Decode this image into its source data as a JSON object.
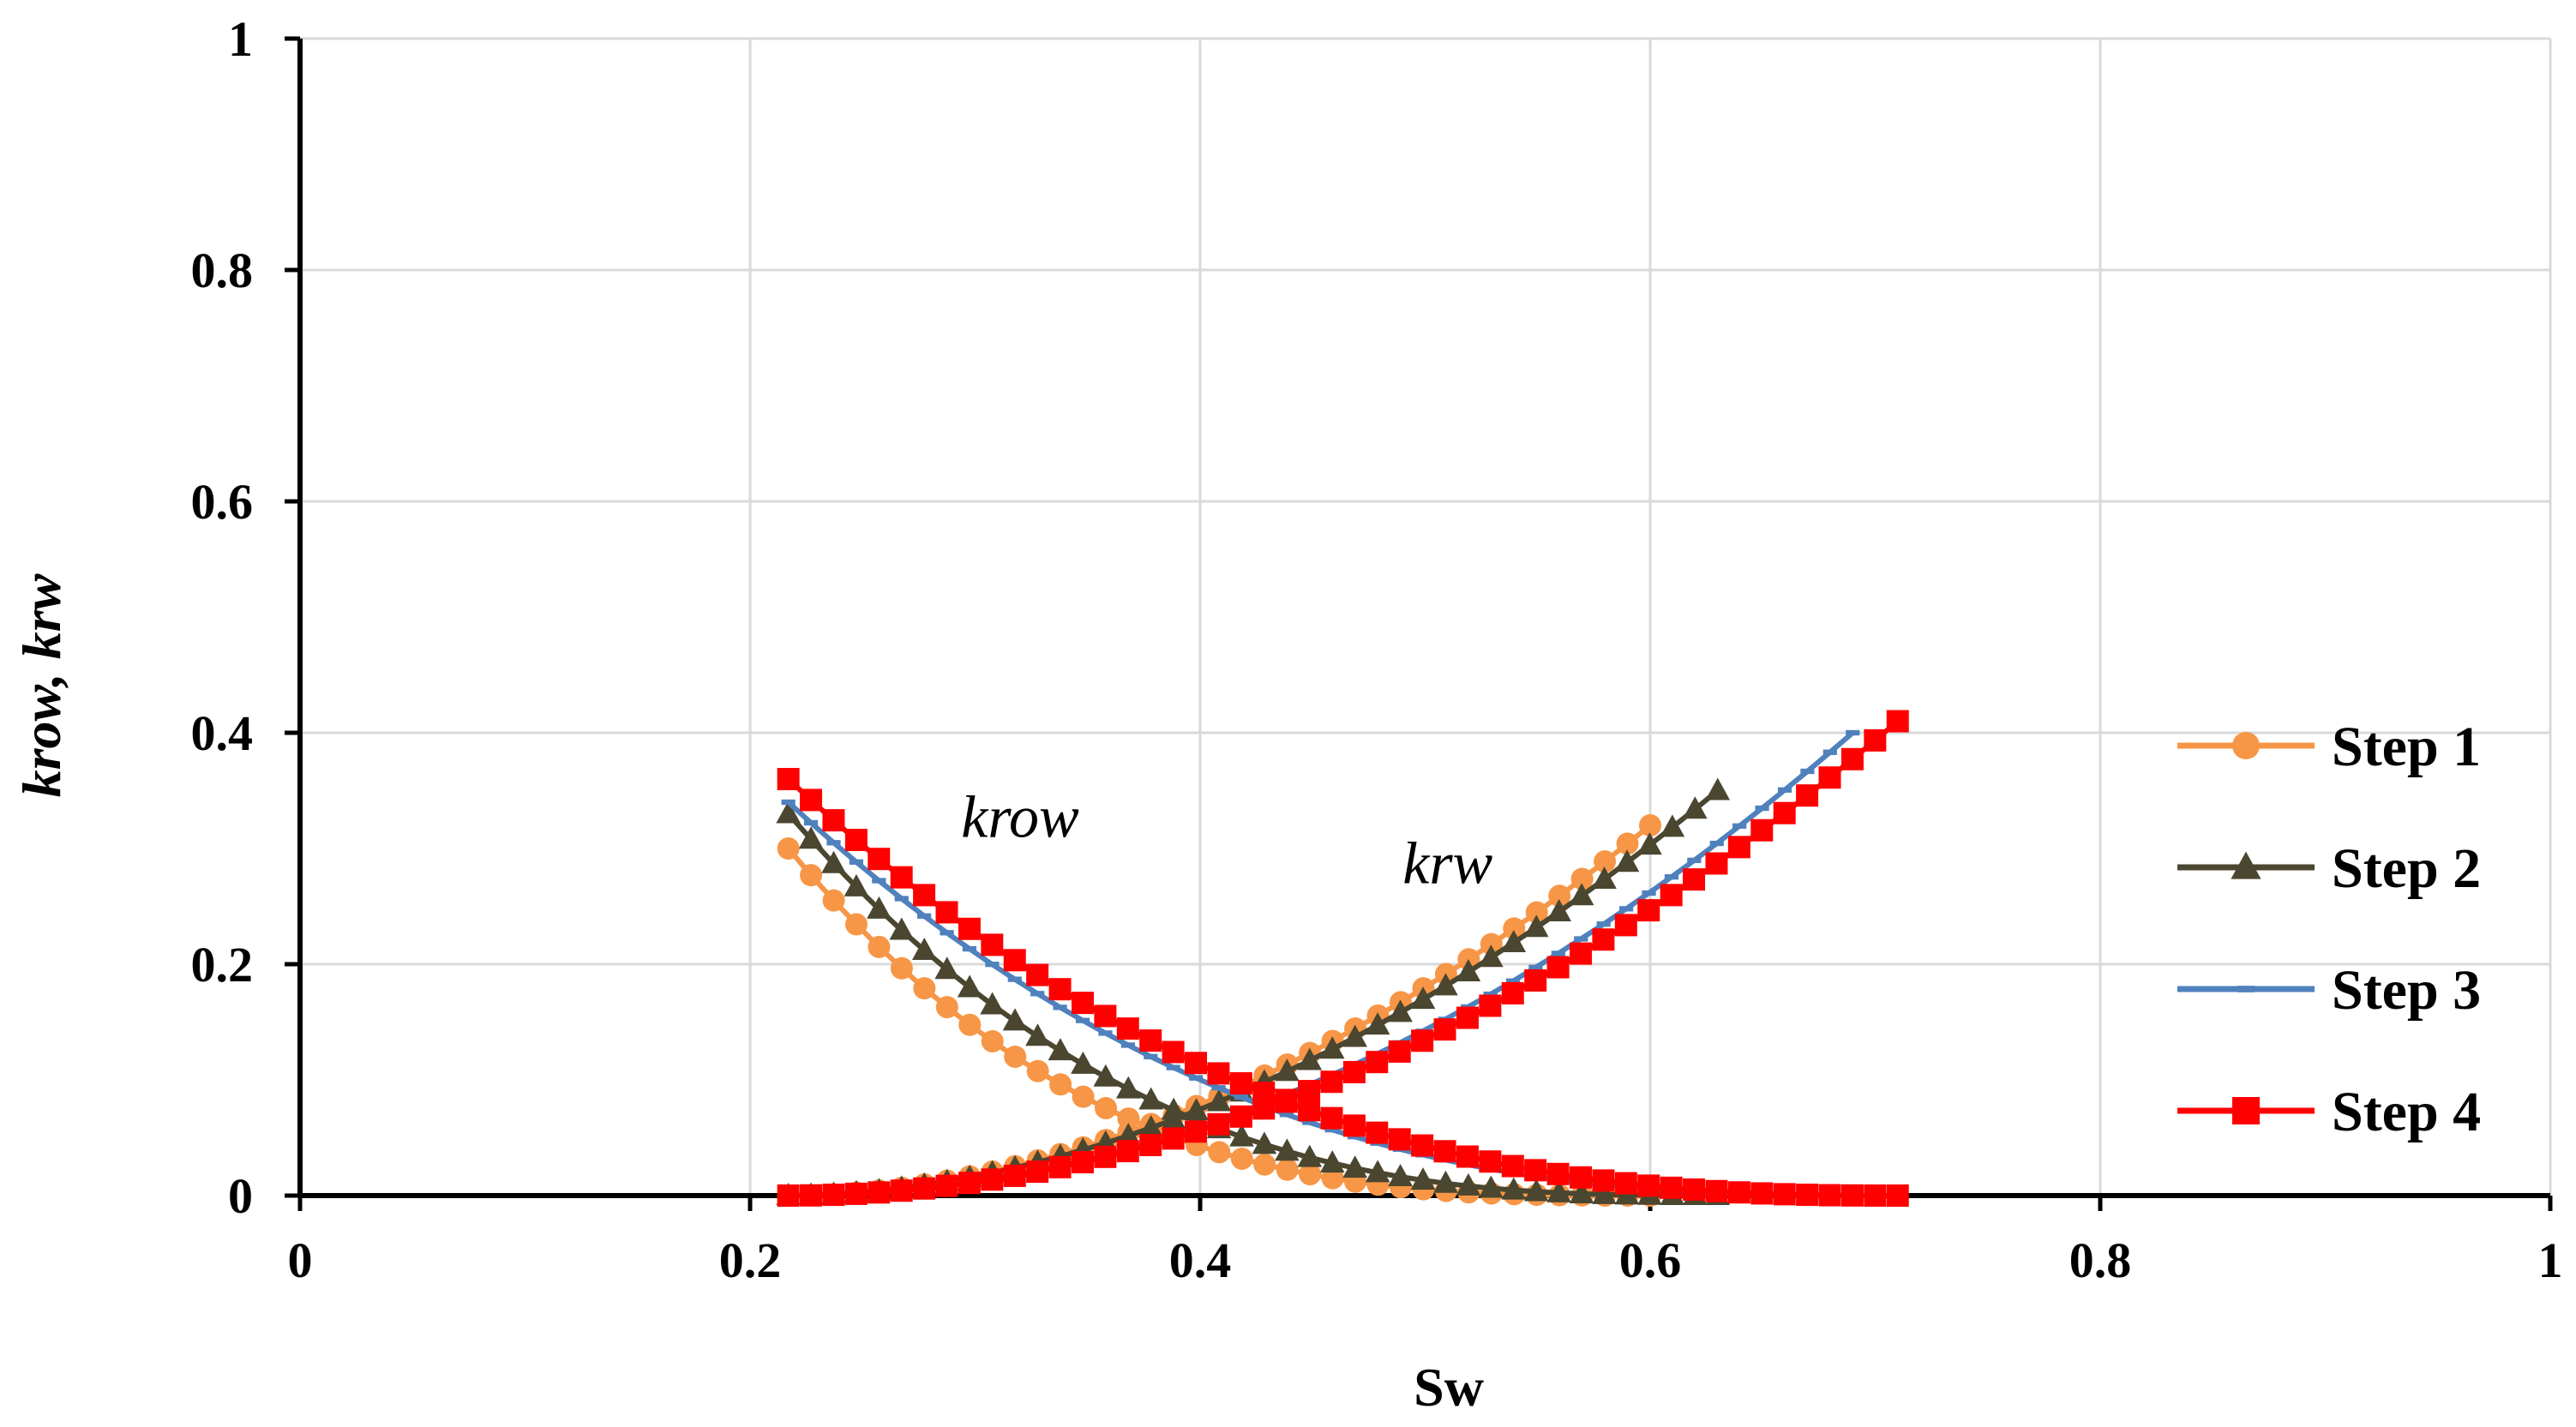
{
  "chart_data": {
    "type": "line",
    "title": "",
    "xlabel": "Sw",
    "ylabel": "krow, krw",
    "xlim": [
      0,
      1
    ],
    "ylim": [
      0,
      1
    ],
    "x_ticks": [
      "0",
      "0.2",
      "0.4",
      "0.6",
      "0.8",
      "1"
    ],
    "y_ticks": [
      "0",
      "0.2",
      "0.4",
      "0.6",
      "0.8",
      "1"
    ],
    "grid": true,
    "legend_position": "right",
    "annotations": [
      {
        "text": "krow",
        "x": 0.32,
        "y": 0.31
      },
      {
        "text": "krw",
        "x": 0.51,
        "y": 0.27
      }
    ],
    "series": [
      {
        "name": "Step 1",
        "color": "#f79646",
        "marker": "circle",
        "krow_curve": {
          "x_start": 0.217,
          "x_end": 0.6,
          "y_start": 0.3,
          "y_end": 0.0,
          "exponent": 3.0
        },
        "krw_curve": {
          "x_start": 0.217,
          "x_end": 0.6,
          "y_start": 0.0,
          "y_end": 0.32,
          "exponent": 1.9
        }
      },
      {
        "name": "Step 2",
        "color": "#4a4630",
        "marker": "triangle",
        "krow_curve": {
          "x_start": 0.217,
          "x_end": 0.63,
          "y_start": 0.33,
          "y_end": 0.0,
          "exponent": 2.8
        },
        "krw_curve": {
          "x_start": 0.217,
          "x_end": 0.63,
          "y_start": 0.0,
          "y_end": 0.35,
          "exponent": 1.9
        }
      },
      {
        "name": "Step 3",
        "color": "#4f81bd",
        "marker": "dash",
        "krow_curve": {
          "x_start": 0.217,
          "x_end": 0.69,
          "y_start": 0.34,
          "y_end": 0.0,
          "exponent": 2.5
        },
        "krw_curve": {
          "x_start": 0.217,
          "x_end": 0.69,
          "y_start": 0.0,
          "y_end": 0.4,
          "exponent": 2.0
        }
      },
      {
        "name": "Step 4",
        "color": "#ff0000",
        "marker": "square",
        "krow_curve": {
          "x_start": 0.217,
          "x_end": 0.71,
          "y_start": 0.36,
          "y_end": 0.0,
          "exponent": 2.5
        },
        "krw_curve": {
          "x_start": 0.217,
          "x_end": 0.71,
          "y_start": 0.0,
          "y_end": 0.41,
          "exponent": 2.0
        }
      }
    ]
  }
}
